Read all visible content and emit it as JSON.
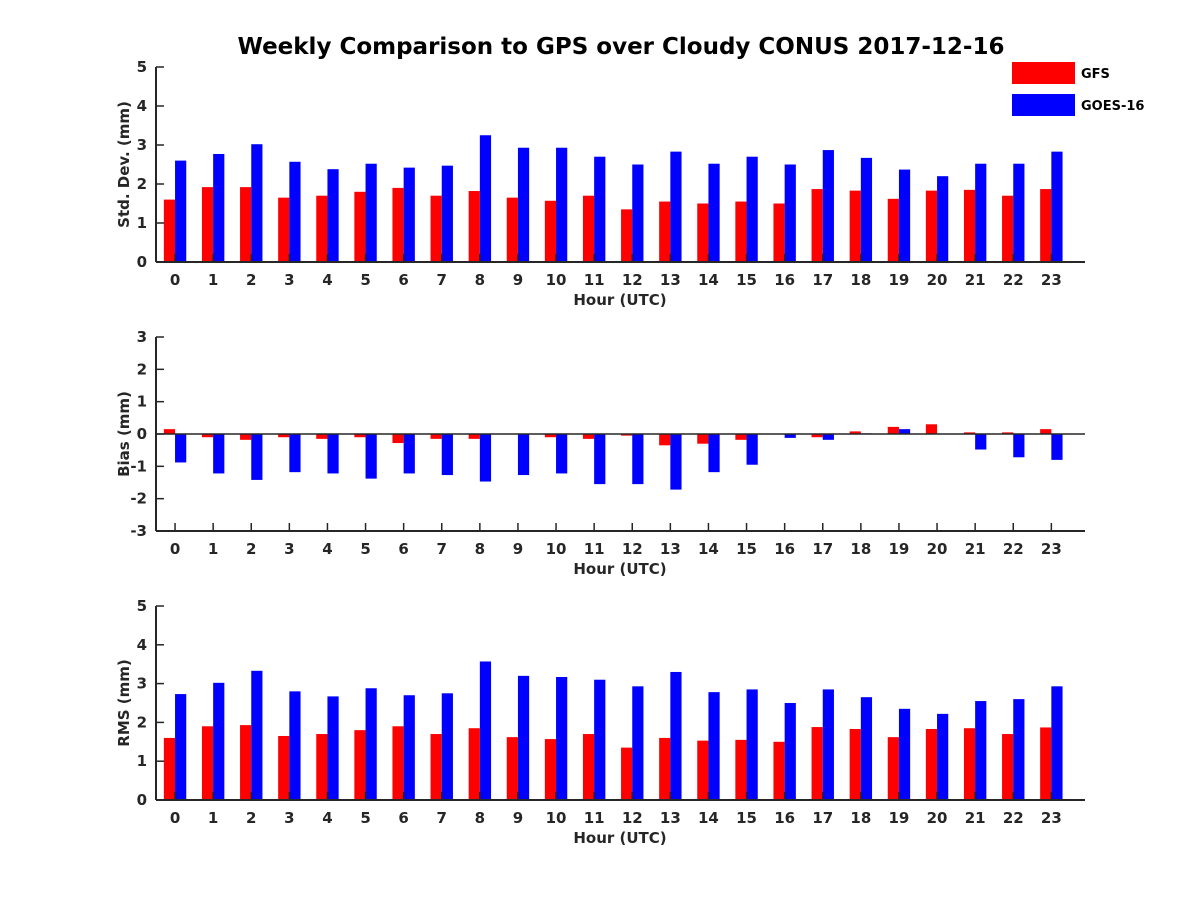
{
  "chart_data": {
    "type": "bar",
    "title": "Weekly Comparison to GPS over Cloudy CONUS 2017-12-16",
    "categories": [
      "0",
      "1",
      "2",
      "3",
      "4",
      "5",
      "6",
      "7",
      "8",
      "9",
      "10",
      "11",
      "12",
      "13",
      "14",
      "15",
      "16",
      "17",
      "18",
      "19",
      "20",
      "21",
      "22",
      "23"
    ],
    "legend": {
      "placement": "top-right",
      "entries": [
        {
          "name": "GFS",
          "color": "#ff0000"
        },
        {
          "name": "GOES-16",
          "color": "#0000ff"
        }
      ]
    },
    "panels": [
      {
        "id": "std",
        "xlabel": "Hour (UTC)",
        "ylabel": "Std. Dev. (mm)",
        "ylim": [
          0,
          5
        ],
        "yticks": [
          "0",
          "1",
          "2",
          "3",
          "4",
          "5"
        ],
        "series": [
          {
            "name": "GFS",
            "color": "#ff0000",
            "values": [
              1.6,
              1.92,
              1.92,
              1.65,
              1.7,
              1.8,
              1.9,
              1.7,
              1.82,
              1.65,
              1.57,
              1.7,
              1.35,
              1.55,
              1.5,
              1.55,
              1.5,
              1.87,
              1.83,
              1.62,
              1.83,
              1.85,
              1.7,
              1.87
            ]
          },
          {
            "name": "GOES-16",
            "color": "#0000ff",
            "values": [
              2.6,
              2.77,
              3.02,
              2.57,
              2.38,
              2.52,
              2.42,
              2.47,
              3.25,
              2.93,
              2.93,
              2.7,
              2.5,
              2.83,
              2.52,
              2.7,
              2.5,
              2.87,
              2.67,
              2.37,
              2.2,
              2.52,
              2.52,
              2.83
            ]
          }
        ]
      },
      {
        "id": "bias",
        "xlabel": "Hour (UTC)",
        "ylabel": "Bias (mm)",
        "ylim": [
          -3,
          3
        ],
        "yticks": [
          "-3",
          "-2",
          "-1",
          "0",
          "1",
          "2",
          "3"
        ],
        "series": [
          {
            "name": "GFS",
            "color": "#ff0000",
            "values": [
              0.15,
              -0.1,
              -0.18,
              -0.1,
              -0.15,
              -0.1,
              -0.28,
              -0.15,
              -0.15,
              0,
              -0.1,
              -0.15,
              -0.05,
              -0.35,
              -0.3,
              -0.18,
              0,
              -0.1,
              0.08,
              0.22,
              0.3,
              0.05,
              0.05,
              0.15
            ]
          },
          {
            "name": "GOES-16",
            "color": "#0000ff",
            "values": [
              -0.88,
              -1.22,
              -1.42,
              -1.18,
              -1.22,
              -1.38,
              -1.22,
              -1.27,
              -1.47,
              -1.27,
              -1.22,
              -1.55,
              -1.55,
              -1.72,
              -1.18,
              -0.95,
              -0.12,
              -0.18,
              0.02,
              0.15,
              0,
              -0.48,
              -0.72,
              -0.8
            ]
          }
        ]
      },
      {
        "id": "rms",
        "xlabel": "Hour (UTC)",
        "ylabel": "RMS (mm)",
        "ylim": [
          0,
          5
        ],
        "yticks": [
          "0",
          "1",
          "2",
          "3",
          "4",
          "5"
        ],
        "series": [
          {
            "name": "GFS",
            "color": "#ff0000",
            "values": [
              1.6,
              1.9,
              1.93,
              1.65,
              1.7,
              1.8,
              1.9,
              1.7,
              1.85,
              1.62,
              1.57,
              1.7,
              1.35,
              1.6,
              1.53,
              1.55,
              1.5,
              1.88,
              1.83,
              1.62,
              1.83,
              1.85,
              1.7,
              1.87
            ]
          },
          {
            "name": "GOES-16",
            "color": "#0000ff",
            "values": [
              2.73,
              3.02,
              3.33,
              2.8,
              2.67,
              2.88,
              2.7,
              2.75,
              3.57,
              3.2,
              3.17,
              3.1,
              2.93,
              3.3,
              2.78,
              2.85,
              2.5,
              2.85,
              2.65,
              2.35,
              2.22,
              2.55,
              2.6,
              2.93
            ]
          }
        ]
      }
    ]
  }
}
